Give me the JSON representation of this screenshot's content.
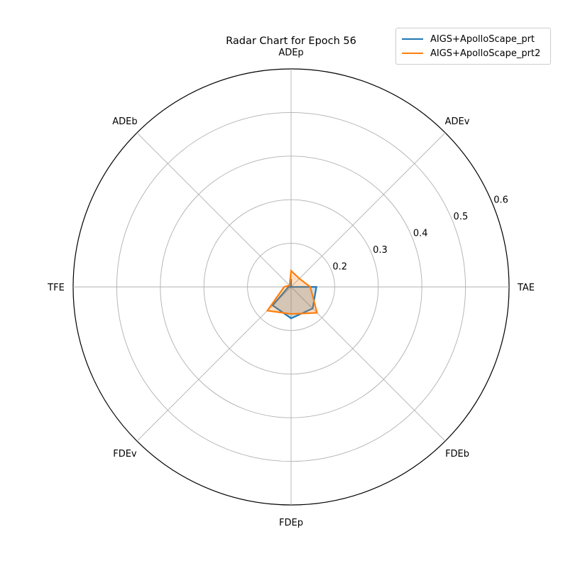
{
  "chart_data": {
    "type": "radar",
    "title": "Radar Chart for Epoch 56",
    "axes": [
      "ADEp",
      "ADEv",
      "TAE",
      "FDEb",
      "FDEp",
      "FDEv",
      "TFE",
      "ADEb"
    ],
    "rlim": [
      0.1,
      0.6
    ],
    "rticks": [
      "0.2",
      "0.3",
      "0.4",
      "0.5",
      "0.6"
    ],
    "grid": true,
    "legend_position": "top-right",
    "series": [
      {
        "name": "AIGS+ApolloScape_prt",
        "color": "#1f77b4",
        "values": [
          0.118,
          0.1,
          0.158,
          0.17,
          0.172,
          0.16,
          0.106,
          0.1
        ]
      },
      {
        "name": "AIGS+ApolloScape_prt2",
        "color": "#ff7f0e",
        "values": [
          0.137,
          0.127,
          0.144,
          0.184,
          0.162,
          0.177,
          0.116,
          0.105
        ]
      }
    ]
  }
}
